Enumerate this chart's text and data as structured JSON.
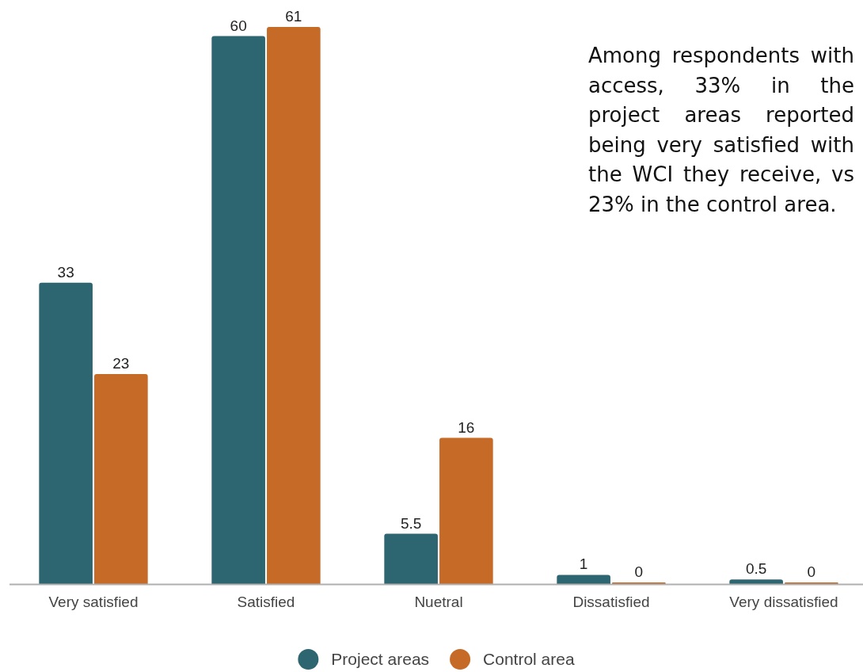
{
  "chart_data": {
    "type": "bar",
    "categories": [
      "Very satisfied",
      "Satisfied",
      "Nuetral",
      "Dissatisfied",
      "Very dissatisfied"
    ],
    "series": [
      {
        "name": "Project areas",
        "color": "#2d6671",
        "values": [
          33,
          60,
          5.5,
          1,
          0.5
        ]
      },
      {
        "name": "Control area",
        "color": "#c66a27",
        "values": [
          23,
          61,
          16,
          0,
          0
        ]
      }
    ],
    "data_labels": true,
    "legend": "bottom",
    "annotations": [
      "Among respondents with access, 33% in the project areas reported being very satisfied with the WCI they receive, vs 23% in the control area."
    ]
  }
}
